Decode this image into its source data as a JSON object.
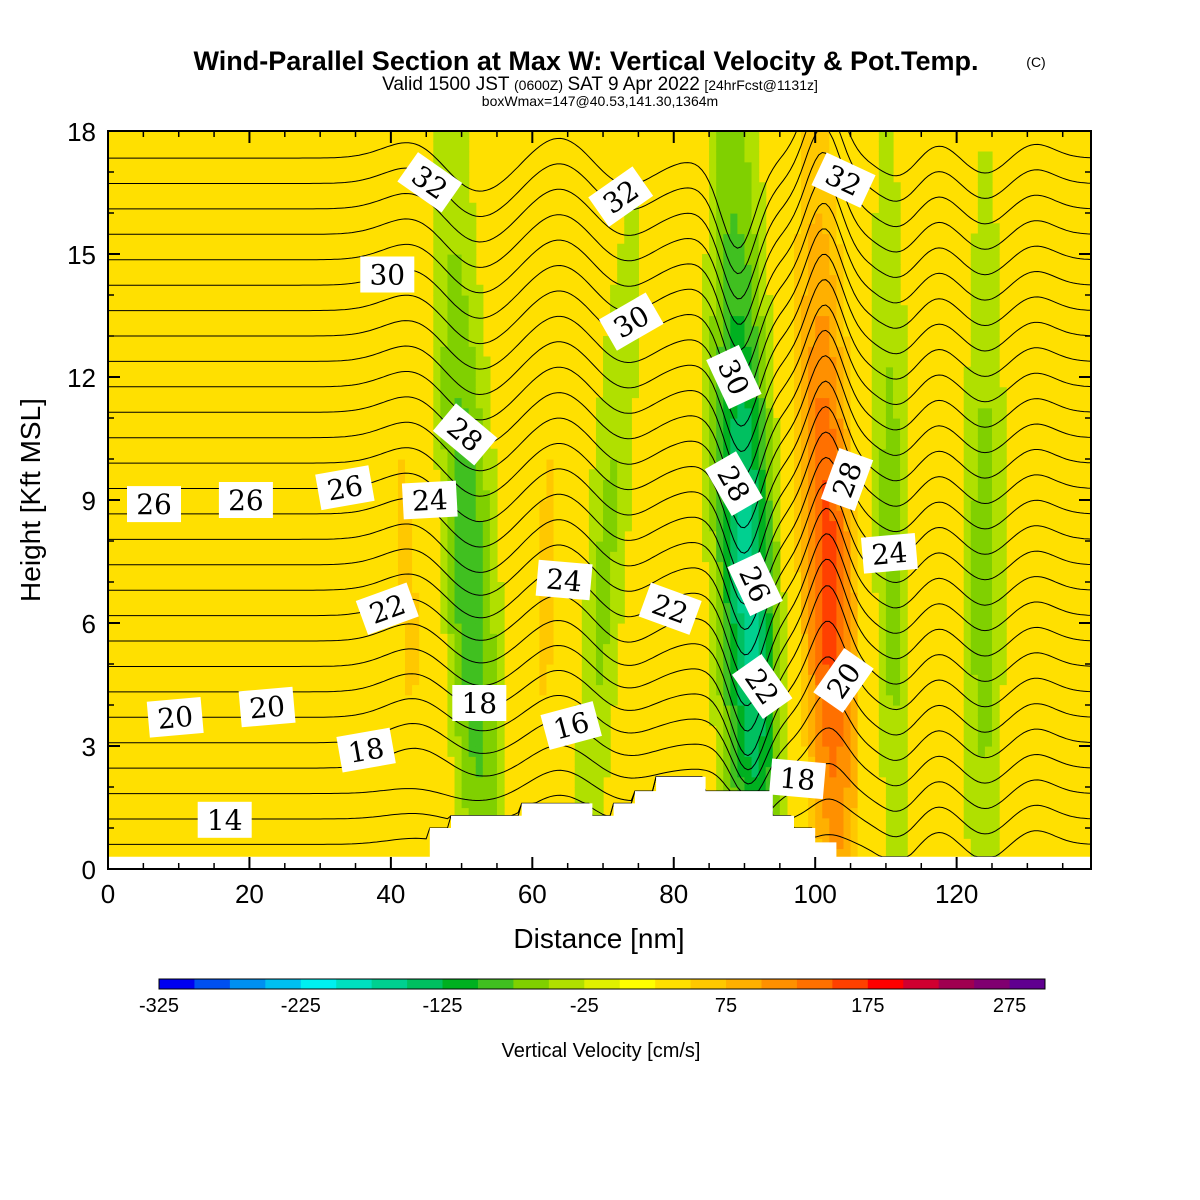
{
  "chart_data": {
    "type": "heatmap",
    "title": "Wind-Parallel Section at Max W: Vertical Velocity & Pot.Temp.",
    "title_mark": "(C)",
    "subtitle_parts": {
      "valid": "Valid 1500 JST",
      "zulu": "(0600Z)",
      "date": "SAT 9 Apr 2022",
      "fcst": "[24hrFcst@1131z]"
    },
    "subtitle2": "boxWmax=147@40.53,141.30,1364m",
    "xlabel": "Distance [nm]",
    "ylabel": "Height [Kft MSL]",
    "xlim": [
      0,
      139
    ],
    "ylim": [
      0,
      18
    ],
    "x_ticks": [
      "0",
      "20",
      "40",
      "60",
      "80",
      "100",
      "120"
    ],
    "x_tick_values": [
      0,
      20,
      40,
      60,
      80,
      100,
      120
    ],
    "y_ticks": [
      "0",
      "3",
      "6",
      "9",
      "12",
      "15",
      "18"
    ],
    "y_tick_values": [
      0,
      3,
      6,
      9,
      12,
      15,
      18
    ],
    "colorbar": {
      "label": "Vertical Velocity [cm/s]",
      "tick_labels": [
        "-325",
        "-225",
        "-125",
        "-25",
        "75",
        "175",
        "275"
      ],
      "tick_values": [
        -325,
        -225,
        -125,
        -25,
        75,
        175,
        275
      ],
      "levels": [
        -325,
        -300,
        -275,
        -250,
        -225,
        -200,
        -175,
        -150,
        -125,
        -100,
        -75,
        -50,
        -25,
        0,
        25,
        50,
        75,
        100,
        125,
        150,
        175,
        200,
        225,
        250,
        275,
        300
      ],
      "colors": [
        "#0000f0",
        "#0050f0",
        "#0090f0",
        "#00c0f0",
        "#00f0f0",
        "#00e0c0",
        "#00d090",
        "#00c060",
        "#00b020",
        "#40c020",
        "#80d000",
        "#b0e000",
        "#e0f000",
        "#ffff00",
        "#ffe000",
        "#ffc800",
        "#ffb000",
        "#ff9000",
        "#ff7000",
        "#ff4000",
        "#ff0000",
        "#d00030",
        "#a00050",
        "#800070",
        "#600090"
      ]
    },
    "vertical_velocity_bands": [
      {
        "name": "updraft",
        "x_base": 44,
        "x_top": 40,
        "intensity": 0.35
      },
      {
        "name": "downdraft",
        "x_base": 53,
        "x_top": 48,
        "intensity": -0.6
      },
      {
        "name": "updraft",
        "x_base": 61,
        "x_top": 64,
        "intensity": 0.35
      },
      {
        "name": "downdraft",
        "x_base": 67,
        "x_top": 75,
        "intensity": -0.35
      },
      {
        "name": "updraft",
        "x_base": 76,
        "x_top": 82,
        "intensity": 0.3
      },
      {
        "name": "downdraft",
        "x_base": 92,
        "x_top": 88,
        "intensity": -1.0
      },
      {
        "name": "updraft",
        "x_base": 103,
        "x_top": 100,
        "intensity": 1.0
      },
      {
        "name": "downdraft",
        "x_base": 112,
        "x_top": 110,
        "intensity": -0.45
      },
      {
        "name": "updraft",
        "x_base": 115,
        "x_top": 117,
        "intensity": 0.3
      },
      {
        "name": "downdraft",
        "x_base": 124,
        "x_top": 124,
        "intensity": -0.4
      },
      {
        "name": "updraft",
        "x_base": 130,
        "x_top": 132,
        "intensity": 0.3
      }
    ],
    "terrain": [
      {
        "x": 0,
        "h": 0.3
      },
      {
        "x": 45.5,
        "h": 0.3
      },
      {
        "x": 45.5,
        "h": 1.0
      },
      {
        "x": 48.5,
        "h": 1.0
      },
      {
        "x": 48.5,
        "h": 1.3
      },
      {
        "x": 58.5,
        "h": 1.3
      },
      {
        "x": 58.5,
        "h": 1.6
      },
      {
        "x": 68.5,
        "h": 1.6
      },
      {
        "x": 68.5,
        "h": 1.3
      },
      {
        "x": 71.5,
        "h": 1.3
      },
      {
        "x": 71.5,
        "h": 1.6
      },
      {
        "x": 74.5,
        "h": 1.6
      },
      {
        "x": 74.5,
        "h": 1.9
      },
      {
        "x": 77.5,
        "h": 1.9
      },
      {
        "x": 77.5,
        "h": 2.25
      },
      {
        "x": 84.5,
        "h": 2.25
      },
      {
        "x": 84.5,
        "h": 1.9
      },
      {
        "x": 94,
        "h": 1.9
      },
      {
        "x": 94,
        "h": 1.3
      },
      {
        "x": 97,
        "h": 1.3
      },
      {
        "x": 97,
        "h": 1.0
      },
      {
        "x": 100,
        "h": 1.0
      },
      {
        "x": 100,
        "h": 0.65
      },
      {
        "x": 103,
        "h": 0.65
      },
      {
        "x": 103,
        "h": 0.3
      },
      {
        "x": 139,
        "h": 0.3
      }
    ],
    "contour_labels": [
      {
        "text": "32",
        "x": 45.5,
        "y": 16.75,
        "angle": 35
      },
      {
        "text": "32",
        "x": 72.5,
        "y": 16.4,
        "angle": -35
      },
      {
        "text": "32",
        "x": 104,
        "y": 16.8,
        "angle": 25
      },
      {
        "text": "30",
        "x": 39.5,
        "y": 14.5,
        "angle": 0
      },
      {
        "text": "30",
        "x": 74,
        "y": 13.35,
        "angle": -30
      },
      {
        "text": "30",
        "x": 88.5,
        "y": 12.0,
        "angle": 65
      },
      {
        "text": "28",
        "x": 50.5,
        "y": 10.6,
        "angle": 40
      },
      {
        "text": "28",
        "x": 88.5,
        "y": 9.4,
        "angle": 60
      },
      {
        "text": "28",
        "x": 104.5,
        "y": 9.5,
        "angle": -70
      },
      {
        "text": "26",
        "x": 6.5,
        "y": 8.9,
        "angle": 0
      },
      {
        "text": "26",
        "x": 19.5,
        "y": 9.0,
        "angle": 0
      },
      {
        "text": "26",
        "x": 33.5,
        "y": 9.3,
        "angle": -10
      },
      {
        "text": "24",
        "x": 45.5,
        "y": 9.0,
        "angle": -3
      },
      {
        "text": "24",
        "x": 64.5,
        "y": 7.05,
        "angle": 5
      },
      {
        "text": "24",
        "x": 110.5,
        "y": 7.7,
        "angle": -5
      },
      {
        "text": "26",
        "x": 91.5,
        "y": 6.95,
        "angle": 65
      },
      {
        "text": "22",
        "x": 39.5,
        "y": 6.35,
        "angle": -20
      },
      {
        "text": "22",
        "x": 79.5,
        "y": 6.35,
        "angle": 20
      },
      {
        "text": "22",
        "x": 92.5,
        "y": 4.45,
        "angle": 55
      },
      {
        "text": "20",
        "x": 104,
        "y": 4.6,
        "angle": -55
      },
      {
        "text": "20",
        "x": 9.5,
        "y": 3.7,
        "angle": -5
      },
      {
        "text": "20",
        "x": 22.5,
        "y": 3.95,
        "angle": -5
      },
      {
        "text": "18",
        "x": 52.5,
        "y": 4.05,
        "angle": 0
      },
      {
        "text": "18",
        "x": 36.5,
        "y": 2.9,
        "angle": -10
      },
      {
        "text": "18",
        "x": 97.5,
        "y": 2.2,
        "angle": 5
      },
      {
        "text": "16",
        "x": 65.5,
        "y": 3.5,
        "angle": -15
      },
      {
        "text": "14",
        "x": 16.5,
        "y": 1.2,
        "angle": 0
      }
    ]
  }
}
